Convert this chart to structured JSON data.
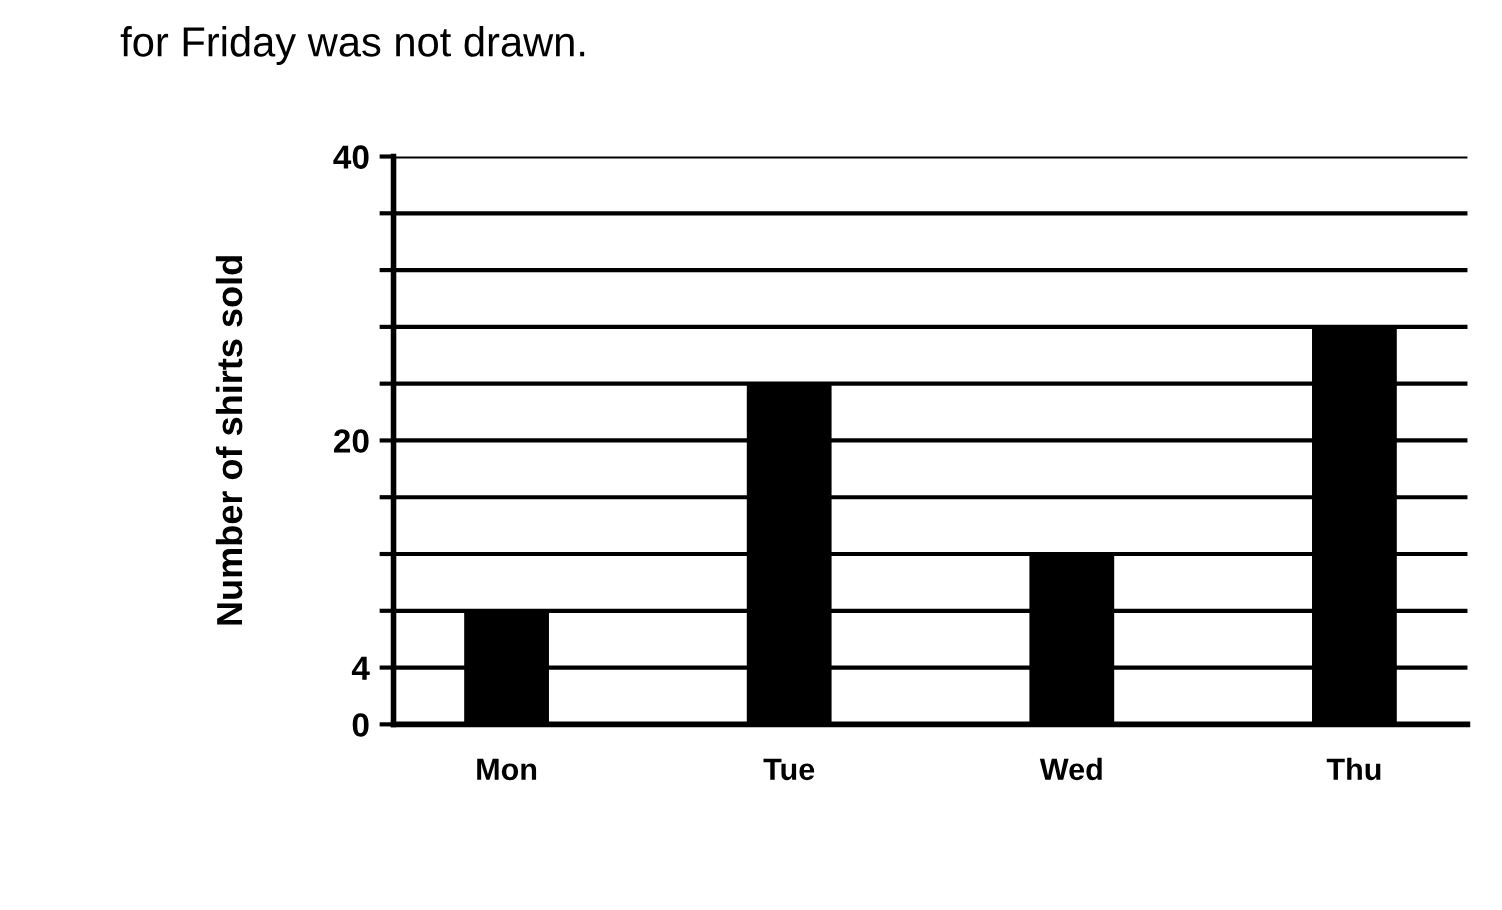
{
  "chart_data": {
    "type": "bar",
    "annotations": [
      "for Friday was not drawn."
    ],
    "ylabel": "Number of shirts sold",
    "categories": [
      "Mon",
      "Tue",
      "Wed",
      "Thu"
    ],
    "values": [
      8,
      24,
      12,
      28
    ],
    "color": "#000000",
    "ylim": [
      0,
      40
    ],
    "yticks": [
      0,
      {
        "value": 4,
        "label": "4"
      },
      {
        "value": 8,
        "label": null
      },
      {
        "value": 12,
        "label": null
      },
      {
        "value": 16,
        "label": null
      },
      20,
      {
        "value": 24,
        "label": null
      },
      {
        "value": 28,
        "label": null
      },
      {
        "value": 32,
        "label": null
      },
      {
        "value": 36,
        "label": null
      },
      40
    ],
    "grid": "y"
  }
}
